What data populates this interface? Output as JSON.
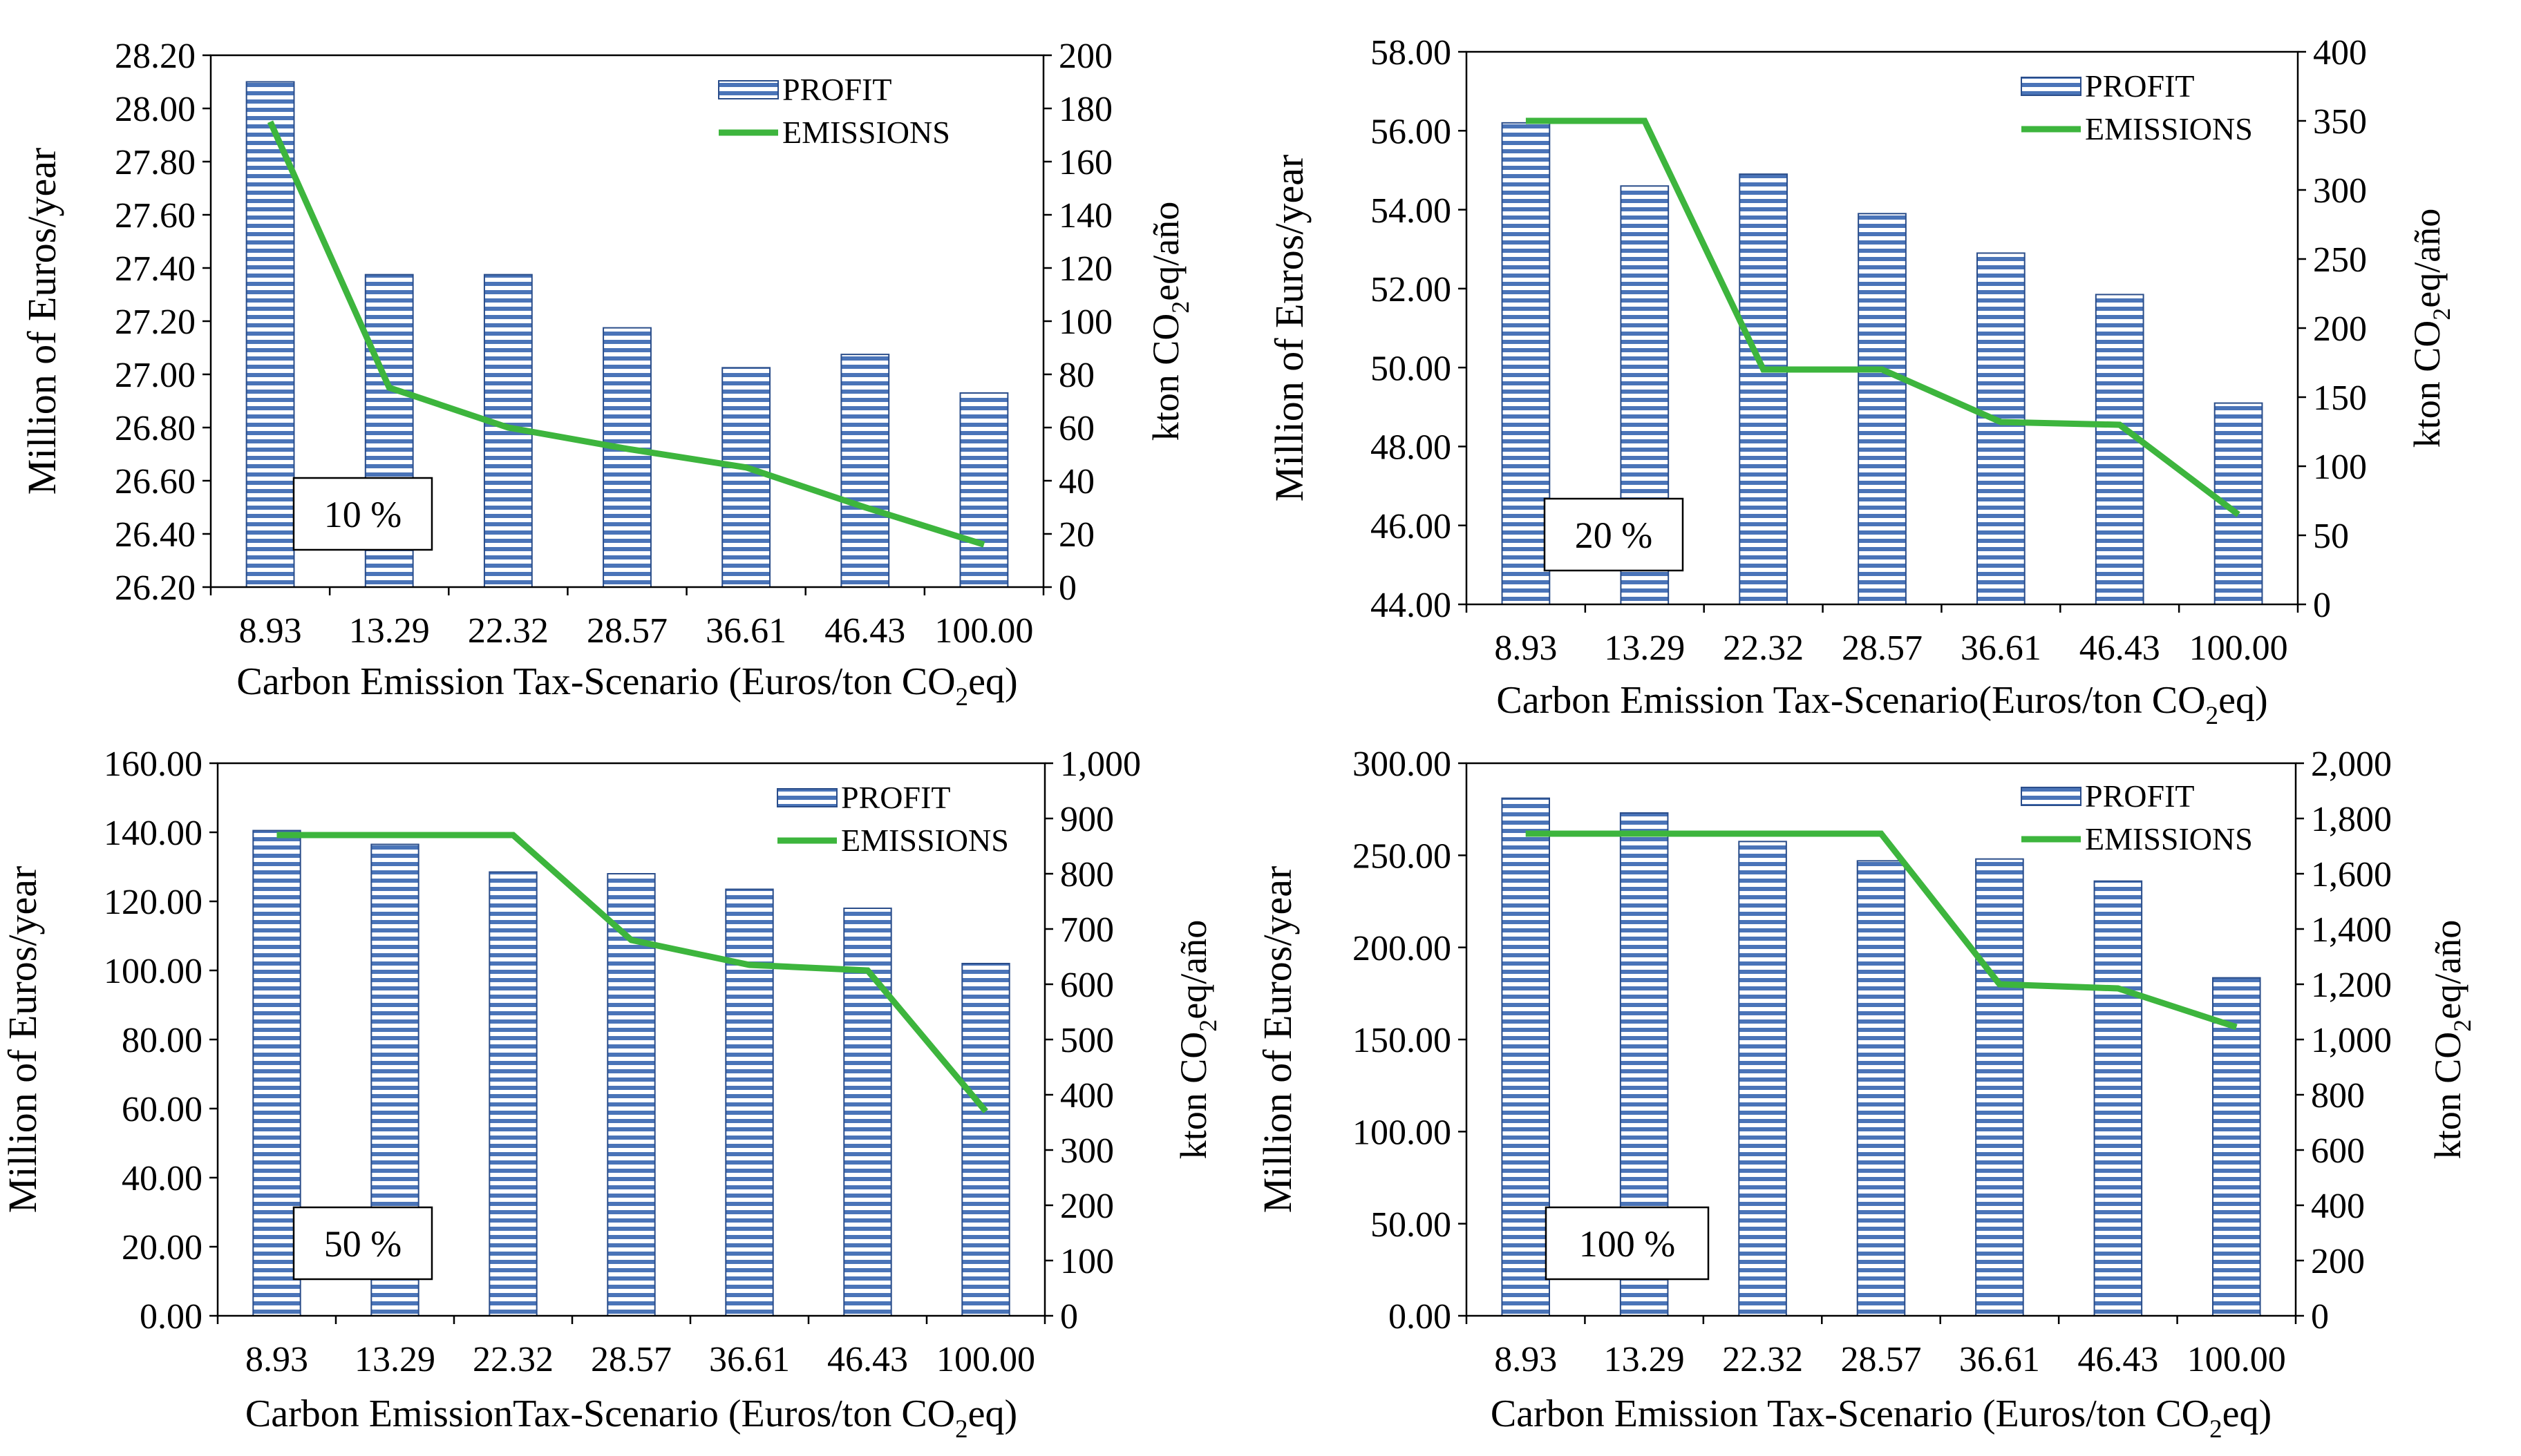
{
  "colors": {
    "bar_fill": "#ffffff",
    "bar_stripe": "#4a74b8",
    "bar_edge": "#2a4d8a",
    "line": "#3db53d",
    "axis": "#000000"
  },
  "chart_data": [
    {
      "type": "bar",
      "label": "10 %",
      "categories": [
        "8.93",
        "13.29",
        "22.32",
        "28.57",
        "36.61",
        "46.43",
        "100.00"
      ],
      "series": [
        {
          "name": "PROFIT",
          "type": "bar",
          "axis": "left",
          "values": [
            28.1,
            27.375,
            27.375,
            27.175,
            27.025,
            27.075,
            26.93
          ]
        },
        {
          "name": "EMISSIONS",
          "type": "line",
          "axis": "right",
          "values": [
            175,
            75,
            60,
            52,
            45,
            30,
            16
          ]
        }
      ],
      "ylim": [
        26.2,
        28.2
      ],
      "yticks": [
        "26.20",
        "26.40",
        "26.60",
        "26.80",
        "27.00",
        "27.20",
        "27.40",
        "27.60",
        "27.80",
        "28.00",
        "28.20"
      ],
      "y2lim": [
        0,
        200
      ],
      "y2ticks": [
        "0",
        "20",
        "40",
        "60",
        "80",
        "100",
        "120",
        "140",
        "160",
        "180",
        "200"
      ],
      "ylabel": "Million of Euros/year",
      "y2label_pre": "kton CO",
      "y2label_sub": "2",
      "y2label_post": "eq/año",
      "xlabel_pre": "Carbon Emission Tax-Scenario (Euros/ton CO",
      "xlabel_sub": "2",
      "xlabel_post": "eq)"
    },
    {
      "type": "bar",
      "label": "20 %",
      "categories": [
        "8.93",
        "13.29",
        "22.32",
        "28.57",
        "36.61",
        "46.43",
        "100.00"
      ],
      "series": [
        {
          "name": "PROFIT",
          "type": "bar",
          "axis": "left",
          "values": [
            56.2,
            54.6,
            54.9,
            53.9,
            52.9,
            51.85,
            49.1
          ]
        },
        {
          "name": "EMISSIONS",
          "type": "line",
          "axis": "right",
          "values": [
            350,
            350,
            170,
            170,
            132,
            130,
            65
          ]
        }
      ],
      "ylim": [
        44,
        58
      ],
      "yticks": [
        "44.00",
        "46.00",
        "48.00",
        "50.00",
        "52.00",
        "54.00",
        "56.00",
        "58.00"
      ],
      "y2lim": [
        0,
        400
      ],
      "y2ticks": [
        "0",
        "50",
        "100",
        "150",
        "200",
        "250",
        "300",
        "350",
        "400"
      ],
      "ylabel": "Million of Euros/year",
      "y2label_pre": "kton CO",
      "y2label_sub": "2",
      "y2label_post": "eq/año",
      "xlabel_pre": "Carbon Emission Tax-Scenario(Euros/ton CO",
      "xlabel_sub": "2",
      "xlabel_post": "eq)"
    },
    {
      "type": "bar",
      "label": "50 %",
      "categories": [
        "8.93",
        "13.29",
        "22.32",
        "28.57",
        "36.61",
        "46.43",
        "100.00"
      ],
      "series": [
        {
          "name": "PROFIT",
          "type": "bar",
          "axis": "left",
          "values": [
            140.5,
            136.5,
            128.5,
            128,
            123.5,
            118,
            102
          ]
        },
        {
          "name": "EMISSIONS",
          "type": "line",
          "axis": "right",
          "values": [
            870,
            870,
            870,
            680,
            635,
            625,
            370
          ]
        }
      ],
      "ylim": [
        0,
        160
      ],
      "yticks": [
        "0.00",
        "20.00",
        "40.00",
        "60.00",
        "80.00",
        "100.00",
        "120.00",
        "140.00",
        "160.00"
      ],
      "y2lim": [
        0,
        1000
      ],
      "y2ticks": [
        "0",
        "100",
        "200",
        "300",
        "400",
        "500",
        "600",
        "700",
        "800",
        "900",
        "1,000"
      ],
      "ylabel": "Million of Euros/year",
      "y2label_pre": "kton CO",
      "y2label_sub": "2",
      "y2label_post": "eq/año",
      "xlabel_pre": "Carbon EmissionTax-Scenario (Euros/ton CO",
      "xlabel_sub": "2",
      "xlabel_post": "eq)"
    },
    {
      "type": "bar",
      "label": "100 %",
      "categories": [
        "8.93",
        "13.29",
        "22.32",
        "28.57",
        "36.61",
        "46.43",
        "100.00"
      ],
      "series": [
        {
          "name": "PROFIT",
          "type": "bar",
          "axis": "left",
          "values": [
            281,
            273,
            257.5,
            247,
            248,
            236,
            183.5
          ]
        },
        {
          "name": "EMISSIONS",
          "type": "line",
          "axis": "right",
          "values": [
            1745,
            1745,
            1745,
            1745,
            1200,
            1185,
            1045
          ]
        }
      ],
      "ylim": [
        0,
        300
      ],
      "yticks": [
        "0.00",
        "50.00",
        "100.00",
        "150.00",
        "200.00",
        "250.00",
        "300.00"
      ],
      "y2lim": [
        0,
        2000
      ],
      "y2ticks": [
        "0",
        "200",
        "400",
        "600",
        "800",
        "1,000",
        "1,200",
        "1,400",
        "1,600",
        "1,800",
        "2,000"
      ],
      "ylabel": "Million of Euros/year",
      "y2label_pre": "kton CO",
      "y2label_sub": "2",
      "y2label_post": "eq/año",
      "xlabel_pre": "Carbon Emission Tax-Scenario (Euros/ton CO",
      "xlabel_sub": "2",
      "xlabel_post": "eq)"
    }
  ]
}
